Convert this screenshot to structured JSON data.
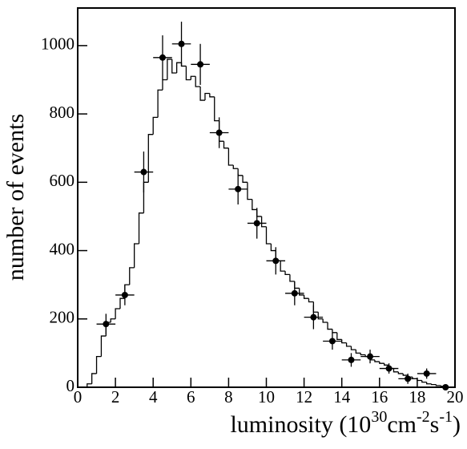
{
  "chart_data": {
    "type": "histogram",
    "x_label": [
      "luminosity (10",
      "30",
      "cm",
      "-2",
      "s",
      "-1",
      ")"
    ],
    "y_label": "number of events",
    "xlim": [
      0,
      20
    ],
    "ylim": [
      0,
      1110
    ],
    "xticks": [
      0,
      2,
      4,
      6,
      8,
      10,
      12,
      14,
      16,
      18,
      20
    ],
    "yticks": [
      0,
      200,
      400,
      600,
      800,
      1000
    ],
    "color": "#000000",
    "bins": [
      0,
      0.25,
      0.5,
      0.75,
      1,
      1.25,
      1.5,
      1.75,
      2,
      2.25,
      2.5,
      2.75,
      3,
      3.25,
      3.5,
      3.75,
      4,
      4.25,
      4.5,
      4.75,
      5,
      5.25,
      5.5,
      5.75,
      6,
      6.25,
      6.5,
      6.75,
      7,
      7.25,
      7.5,
      7.75,
      8,
      8.25,
      8.5,
      8.75,
      9,
      9.25,
      9.5,
      9.75,
      10,
      10.25,
      10.5,
      10.75,
      11,
      11.25,
      11.5,
      11.75,
      12,
      12.25,
      12.5,
      12.75,
      13,
      13.25,
      13.5,
      13.75,
      14,
      14.25,
      14.5,
      14.75,
      15,
      15.25,
      15.5,
      15.75,
      16,
      16.25,
      16.5,
      16.75,
      17,
      17.25,
      17.5,
      17.75,
      18,
      18.25,
      18.5,
      18.75,
      19,
      19.25,
      19.5,
      19.75,
      20
    ],
    "counts": [
      0,
      0,
      10,
      40,
      90,
      150,
      190,
      200,
      230,
      260,
      300,
      350,
      420,
      510,
      600,
      740,
      790,
      870,
      900,
      960,
      920,
      950,
      940,
      900,
      910,
      880,
      840,
      860,
      850,
      780,
      720,
      700,
      650,
      640,
      620,
      600,
      550,
      520,
      500,
      470,
      420,
      400,
      370,
      340,
      330,
      310,
      290,
      270,
      260,
      250,
      220,
      200,
      190,
      170,
      160,
      140,
      130,
      120,
      110,
      100,
      95,
      90,
      80,
      75,
      70,
      65,
      55,
      45,
      40,
      35,
      30,
      25,
      20,
      15,
      10,
      8,
      5,
      3,
      0,
      0
    ],
    "points": {
      "x": [
        1.5,
        2.5,
        3.5,
        4.5,
        5.5,
        6.5,
        7.5,
        8.5,
        9.5,
        10.5,
        11.5,
        12.5,
        13.5,
        14.5,
        15.5,
        16.5,
        17.5,
        18.5,
        19.5
      ],
      "xerr": [
        0.5,
        0.5,
        0.5,
        0.5,
        0.5,
        0.5,
        0.5,
        0.5,
        0.5,
        0.5,
        0.5,
        0.5,
        0.5,
        0.5,
        0.5,
        0.5,
        0.5,
        0.5,
        0.5
      ],
      "values": [
        185,
        270,
        630,
        965,
        1005,
        945,
        745,
        580,
        480,
        370,
        275,
        205,
        135,
        80,
        90,
        55,
        25,
        40,
        0
      ],
      "yerr": [
        30,
        30,
        60,
        65,
        65,
        60,
        45,
        45,
        45,
        40,
        35,
        35,
        25,
        20,
        20,
        15,
        15,
        15,
        0
      ]
    }
  }
}
